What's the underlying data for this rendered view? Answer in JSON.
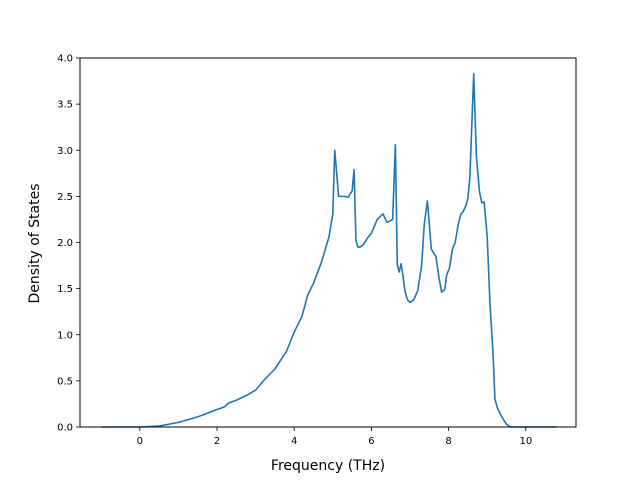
{
  "chart_data": {
    "type": "line",
    "title": "",
    "xlabel": "Frequency (THz)",
    "ylabel": "Density of States",
    "xlim": [
      -1.55,
      11.3
    ],
    "ylim": [
      0.0,
      4.0
    ],
    "xticks": [
      0,
      2,
      4,
      6,
      8,
      10
    ],
    "yticks": [
      0.0,
      0.5,
      1.0,
      1.5,
      2.0,
      2.5,
      3.0,
      3.5,
      4.0
    ],
    "xtick_labels": [
      "0",
      "2",
      "4",
      "6",
      "8",
      "10"
    ],
    "ytick_labels": [
      "0.0",
      "0.5",
      "1.0",
      "1.5",
      "2.0",
      "2.5",
      "3.0",
      "3.5",
      "4.0"
    ],
    "grid": false,
    "legend": "none",
    "series": [
      {
        "color": "#1f77b4",
        "x": [
          -1.0,
          0.0,
          0.5,
          1.0,
          1.5,
          2.0,
          2.2,
          2.3,
          2.5,
          2.8,
          3.0,
          3.2,
          3.5,
          3.8,
          4.0,
          4.2,
          4.35,
          4.5,
          4.7,
          4.9,
          5.0,
          5.05,
          5.15,
          5.3,
          5.4,
          5.5,
          5.55,
          5.6,
          5.65,
          5.7,
          5.8,
          5.9,
          6.0,
          6.15,
          6.3,
          6.4,
          6.47,
          6.55,
          6.62,
          6.67,
          6.72,
          6.77,
          6.82,
          6.86,
          6.9,
          6.95,
          7.0,
          7.1,
          7.2,
          7.3,
          7.37,
          7.45,
          7.5,
          7.55,
          7.62,
          7.67,
          7.75,
          7.82,
          7.9,
          7.95,
          8.02,
          8.1,
          8.17,
          8.25,
          8.32,
          8.37,
          8.45,
          8.5,
          8.55,
          8.65,
          8.72,
          8.8,
          8.86,
          8.92,
          9.0,
          9.07,
          9.15,
          9.2,
          9.27,
          9.35,
          9.42,
          9.5,
          9.6,
          9.72,
          9.8,
          9.85,
          10.0,
          10.3,
          10.8
        ],
        "y": [
          0.0,
          0.0,
          0.01,
          0.05,
          0.11,
          0.19,
          0.22,
          0.26,
          0.29,
          0.35,
          0.4,
          0.5,
          0.63,
          0.82,
          1.03,
          1.2,
          1.43,
          1.56,
          1.78,
          2.06,
          2.31,
          3.0,
          2.5,
          2.5,
          2.49,
          2.56,
          2.79,
          2.02,
          1.95,
          1.95,
          1.98,
          2.05,
          2.1,
          2.25,
          2.31,
          2.22,
          2.23,
          2.25,
          3.06,
          1.76,
          1.68,
          1.77,
          1.63,
          1.5,
          1.42,
          1.37,
          1.35,
          1.38,
          1.48,
          1.75,
          2.2,
          2.45,
          2.2,
          1.93,
          1.88,
          1.85,
          1.62,
          1.46,
          1.49,
          1.65,
          1.72,
          1.93,
          2.0,
          2.2,
          2.31,
          2.33,
          2.4,
          2.48,
          2.7,
          3.83,
          2.93,
          2.55,
          2.43,
          2.44,
          2.06,
          1.35,
          0.8,
          0.3,
          0.2,
          0.13,
          0.08,
          0.03,
          0.0,
          0.0,
          0.0,
          0.0,
          0.0,
          0.0,
          0.0
        ]
      }
    ]
  }
}
